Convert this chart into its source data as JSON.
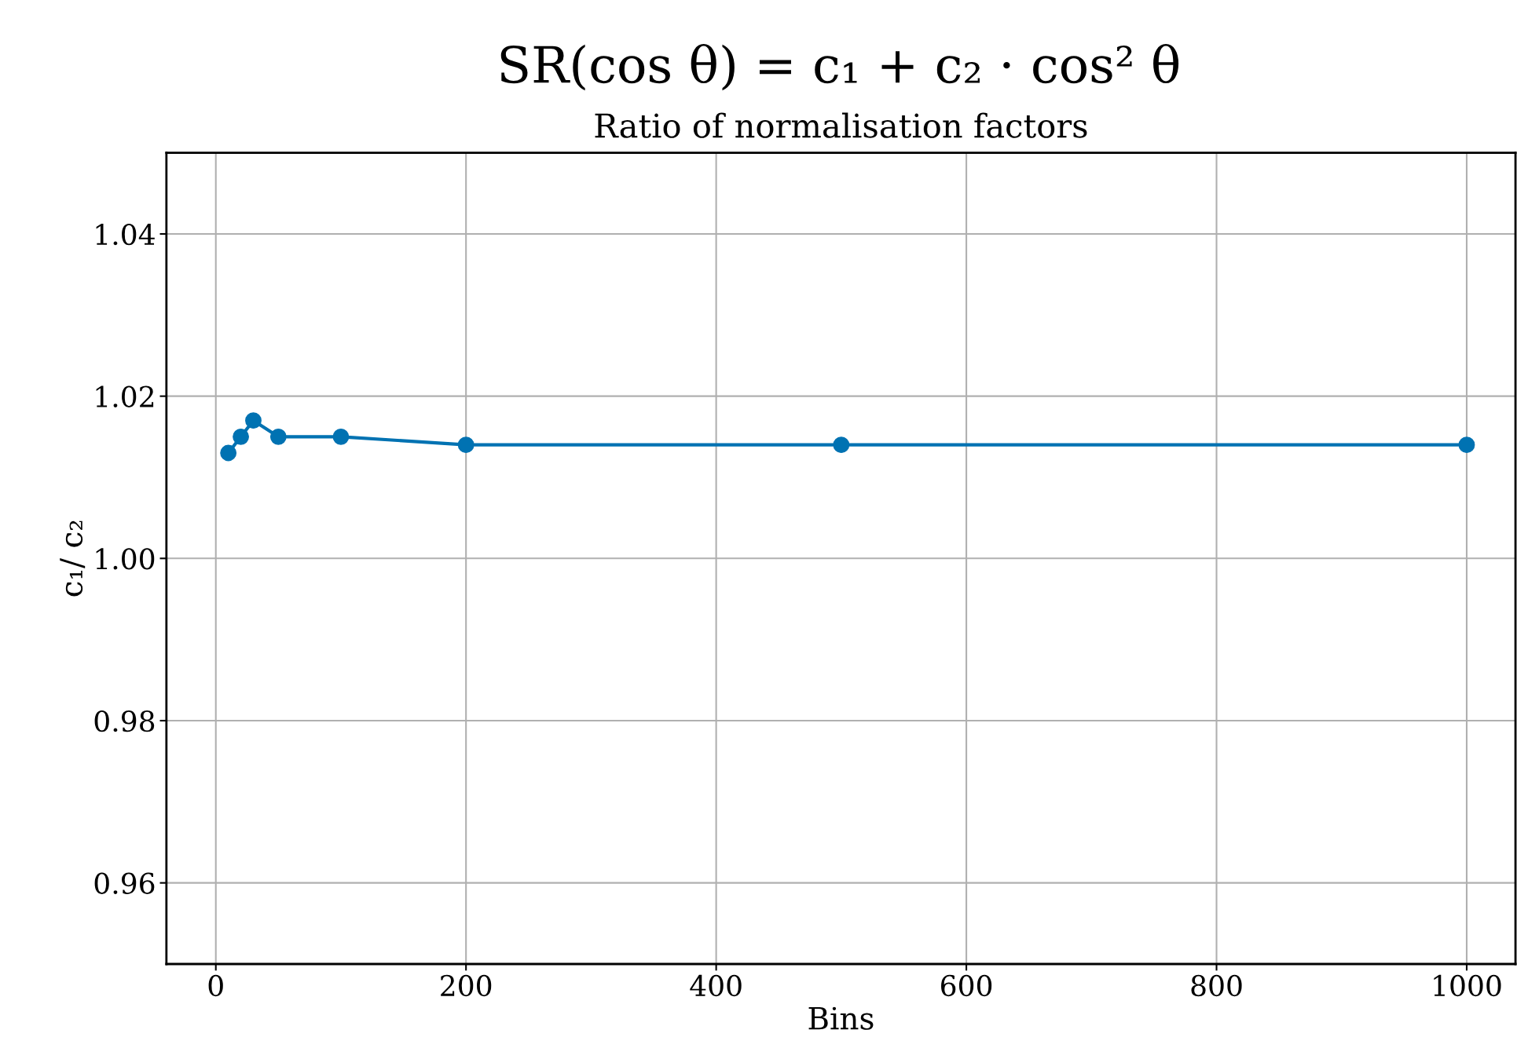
{
  "chart_data": {
    "type": "line",
    "title": "SR(cos θ) = c₁ + c₂ · cos² θ",
    "subtitle": "Ratio of normalisation factors",
    "xlabel": "Bins",
    "ylabel": "c₁/ c₂",
    "x": [
      10,
      20,
      30,
      50,
      100,
      200,
      500,
      1000
    ],
    "series": [
      {
        "color": "#0072b2",
        "values": [
          1.013,
          1.015,
          1.017,
          1.015,
          1.015,
          1.014,
          1.014,
          1.014
        ]
      }
    ],
    "xlim": [
      -39.5,
      1039
    ],
    "xticks": [
      0,
      200,
      400,
      600,
      800,
      1000
    ],
    "ylim": [
      0.95,
      1.05
    ],
    "yticks": [
      0.96,
      0.98,
      {
        "value": 1,
        "label": "1.00"
      },
      1.02,
      1.04
    ],
    "grid": true,
    "marker": "circle",
    "line_style": "solid"
  }
}
